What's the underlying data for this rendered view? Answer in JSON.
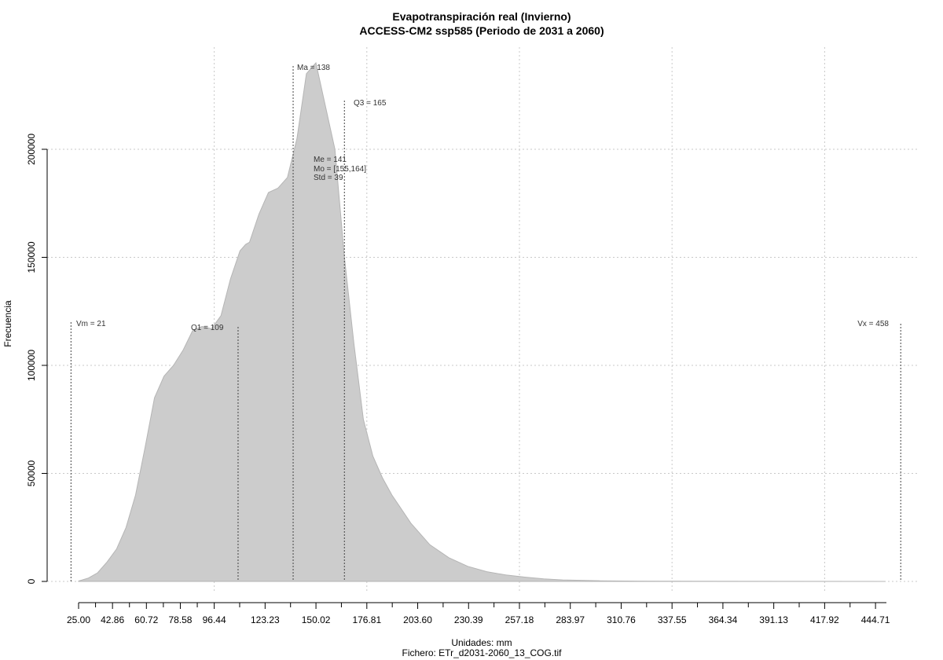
{
  "chart_data": {
    "type": "area",
    "title": "Evapotranspiración real (Invierno)",
    "subtitle": "ACCESS-CM2 ssp585 (Periodo de 2031 a 2060)",
    "xlabel": "Unidades: mm",
    "ylabel": "Frecuencia",
    "caption": "Fichero: ETr_d2031-2060_13_COG.tif",
    "xlim": [
      21,
      458
    ],
    "ylim": [
      0,
      240000
    ],
    "x_ticks": [
      "25.00",
      "42.86",
      "60.72",
      "78.58",
      "96.44",
      "123.23",
      "150.02",
      "176.81",
      "203.60",
      "230.39",
      "257.18",
      "283.97",
      "310.76",
      "337.55",
      "364.34",
      "391.13",
      "417.92",
      "444.71"
    ],
    "y_ticks": [
      "0",
      "50000",
      "100000",
      "150000",
      "200000"
    ],
    "grid": true,
    "fill_color": "#cccccc",
    "series": [
      {
        "x": [
          25,
          30,
          35,
          40,
          45,
          50,
          55,
          60,
          65,
          70,
          75,
          80,
          85,
          90,
          95,
          100,
          105,
          110,
          113,
          115,
          120,
          125,
          130,
          135,
          140,
          145,
          150,
          155,
          160,
          165,
          170,
          175,
          180,
          185,
          190,
          200,
          210,
          220,
          230,
          240,
          250,
          260,
          270,
          280,
          300,
          320,
          350,
          400,
          450
        ],
        "y": [
          200,
          1500,
          4000,
          9000,
          15000,
          25000,
          40000,
          62000,
          85000,
          95000,
          100000,
          107000,
          116000,
          118000,
          117000,
          123000,
          140000,
          153000,
          156000,
          157000,
          170000,
          180000,
          182000,
          187000,
          205000,
          235000,
          240000,
          220000,
          200000,
          150000,
          110000,
          75000,
          58000,
          48000,
          40000,
          27000,
          17000,
          11000,
          7000,
          4500,
          3000,
          2000,
          1200,
          700,
          300,
          150,
          60,
          20,
          5
        ]
      }
    ],
    "annotations": {
      "vm": "Vm = 21",
      "vx": "Vx = 458",
      "q1": "Q1 = 109",
      "ma": "Ma = 138",
      "q3": "Q3 = 165",
      "me": "Me = 141",
      "mo": "Mo = [155,164]",
      "std": "Std = 39"
    },
    "marker_lines": [
      21,
      109,
      138,
      165,
      458
    ]
  }
}
